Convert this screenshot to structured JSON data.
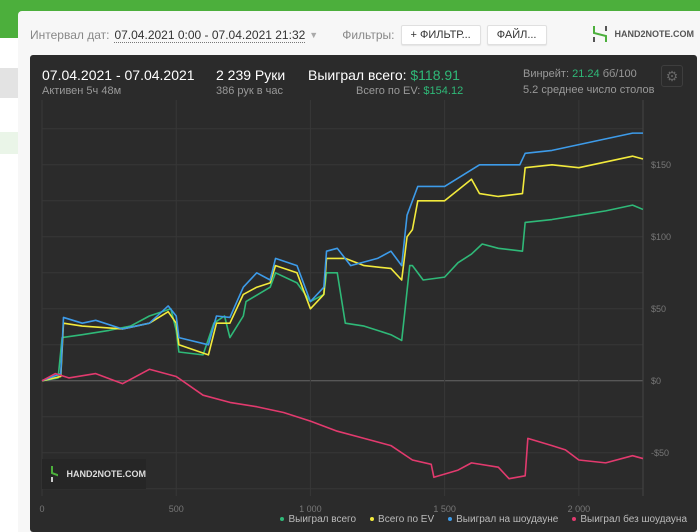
{
  "filters": {
    "interval_label": "Интервал дат:",
    "interval_value": "07.04.2021 0:00 - 07.04.2021 21:32",
    "filters_label": "Фильтры:",
    "filter_button": "+ ФИЛЬТР...",
    "file_button": "ФАЙЛ..."
  },
  "brand": {
    "logo_text": "HAND2NOTE.COM"
  },
  "summary": {
    "date_range": "07.04.2021 - 07.04.2021",
    "active": "Активен 5ч 48м",
    "hands": "2 239 Руки",
    "hands_per_hour": "386 рук в час",
    "won_label": "Выиграл всего:",
    "won_value": "$118.91",
    "ev_label": "Всего по EV:",
    "ev_value": "$154.12",
    "winrate_label": "Винрейт:",
    "winrate_value": "21.24",
    "winrate_unit": "бб/100",
    "tables": "5.2 среднее число столов"
  },
  "colors": {
    "green": "#2fb978",
    "yellow": "#f2ea3c",
    "blue": "#3d9be9",
    "red": "#e23a6e",
    "accent": "#4caf3c"
  },
  "chart_data": {
    "type": "line",
    "xlabel": "",
    "ylabel": "",
    "xlim": [
      0,
      2239
    ],
    "ylim": [
      -80,
      195
    ],
    "grid": true,
    "x_ticks": [
      0,
      500,
      1000,
      1500,
      2000
    ],
    "x_tick_labels": [
      "0",
      "500",
      "1 000",
      "1 500",
      "2 000"
    ],
    "y_ticks": [
      -50,
      0,
      50,
      100,
      150
    ],
    "y_tick_labels": [
      "-$50",
      "$0",
      "$50",
      "$100",
      "$150"
    ],
    "legend_position": "bottom-right",
    "series": [
      {
        "name": "Выиграл всего",
        "color": "#2fb978",
        "points": [
          [
            0,
            0
          ],
          [
            60,
            2
          ],
          [
            75,
            30
          ],
          [
            150,
            32
          ],
          [
            250,
            35
          ],
          [
            330,
            38
          ],
          [
            400,
            45
          ],
          [
            480,
            50
          ],
          [
            500,
            35
          ],
          [
            510,
            20
          ],
          [
            600,
            18
          ],
          [
            640,
            40
          ],
          [
            680,
            45
          ],
          [
            700,
            30
          ],
          [
            750,
            45
          ],
          [
            760,
            55
          ],
          [
            850,
            65
          ],
          [
            870,
            75
          ],
          [
            950,
            68
          ],
          [
            1000,
            55
          ],
          [
            1050,
            60
          ],
          [
            1060,
            75
          ],
          [
            1100,
            75
          ],
          [
            1130,
            40
          ],
          [
            1200,
            38
          ],
          [
            1300,
            32
          ],
          [
            1340,
            28
          ],
          [
            1350,
            45
          ],
          [
            1370,
            80
          ],
          [
            1380,
            80
          ],
          [
            1420,
            70
          ],
          [
            1500,
            72
          ],
          [
            1550,
            82
          ],
          [
            1600,
            88
          ],
          [
            1640,
            95
          ],
          [
            1700,
            92
          ],
          [
            1790,
            90
          ],
          [
            1800,
            110
          ],
          [
            1900,
            112
          ],
          [
            2000,
            115
          ],
          [
            2100,
            118
          ],
          [
            2200,
            122
          ],
          [
            2239,
            119
          ]
        ]
      },
      {
        "name": "Всего по EV",
        "color": "#f2ea3c",
        "points": [
          [
            0,
            0
          ],
          [
            70,
            3
          ],
          [
            80,
            40
          ],
          [
            150,
            38
          ],
          [
            300,
            36
          ],
          [
            400,
            40
          ],
          [
            470,
            48
          ],
          [
            500,
            40
          ],
          [
            510,
            25
          ],
          [
            620,
            18
          ],
          [
            650,
            40
          ],
          [
            700,
            40
          ],
          [
            750,
            60
          ],
          [
            800,
            65
          ],
          [
            850,
            68
          ],
          [
            870,
            80
          ],
          [
            950,
            75
          ],
          [
            1000,
            50
          ],
          [
            1050,
            60
          ],
          [
            1060,
            85
          ],
          [
            1130,
            85
          ],
          [
            1200,
            80
          ],
          [
            1300,
            78
          ],
          [
            1340,
            70
          ],
          [
            1360,
            100
          ],
          [
            1380,
            105
          ],
          [
            1400,
            125
          ],
          [
            1500,
            125
          ],
          [
            1600,
            140
          ],
          [
            1630,
            130
          ],
          [
            1700,
            128
          ],
          [
            1790,
            130
          ],
          [
            1800,
            148
          ],
          [
            1900,
            150
          ],
          [
            2000,
            148
          ],
          [
            2100,
            152
          ],
          [
            2200,
            156
          ],
          [
            2239,
            154
          ]
        ]
      },
      {
        "name": "Выиграл на шоудауне",
        "color": "#3d9be9",
        "points": [
          [
            0,
            0
          ],
          [
            70,
            5
          ],
          [
            80,
            44
          ],
          [
            150,
            40
          ],
          [
            200,
            42
          ],
          [
            300,
            36
          ],
          [
            400,
            40
          ],
          [
            470,
            52
          ],
          [
            500,
            45
          ],
          [
            510,
            30
          ],
          [
            620,
            25
          ],
          [
            650,
            45
          ],
          [
            700,
            44
          ],
          [
            750,
            65
          ],
          [
            800,
            75
          ],
          [
            850,
            70
          ],
          [
            870,
            85
          ],
          [
            950,
            80
          ],
          [
            1000,
            55
          ],
          [
            1050,
            65
          ],
          [
            1060,
            90
          ],
          [
            1100,
            92
          ],
          [
            1150,
            80
          ],
          [
            1250,
            85
          ],
          [
            1300,
            90
          ],
          [
            1340,
            80
          ],
          [
            1360,
            115
          ],
          [
            1400,
            135
          ],
          [
            1500,
            135
          ],
          [
            1630,
            150
          ],
          [
            1780,
            150
          ],
          [
            1800,
            158
          ],
          [
            1900,
            160
          ],
          [
            2000,
            164
          ],
          [
            2100,
            168
          ],
          [
            2200,
            172
          ],
          [
            2239,
            172
          ]
        ]
      },
      {
        "name": "Выиграл без шоудауна",
        "color": "#e23a6e",
        "points": [
          [
            0,
            0
          ],
          [
            50,
            5
          ],
          [
            100,
            2
          ],
          [
            200,
            5
          ],
          [
            300,
            -2
          ],
          [
            400,
            8
          ],
          [
            500,
            3
          ],
          [
            600,
            -10
          ],
          [
            700,
            -15
          ],
          [
            800,
            -18
          ],
          [
            900,
            -22
          ],
          [
            1000,
            -28
          ],
          [
            1100,
            -35
          ],
          [
            1200,
            -40
          ],
          [
            1300,
            -45
          ],
          [
            1380,
            -55
          ],
          [
            1450,
            -58
          ],
          [
            1460,
            -67
          ],
          [
            1550,
            -62
          ],
          [
            1600,
            -57
          ],
          [
            1700,
            -60
          ],
          [
            1740,
            -68
          ],
          [
            1800,
            -66
          ],
          [
            1810,
            -40
          ],
          [
            1900,
            -45
          ],
          [
            1950,
            -48
          ],
          [
            2000,
            -55
          ],
          [
            2100,
            -57
          ],
          [
            2200,
            -52
          ],
          [
            2239,
            -54
          ]
        ]
      }
    ]
  }
}
